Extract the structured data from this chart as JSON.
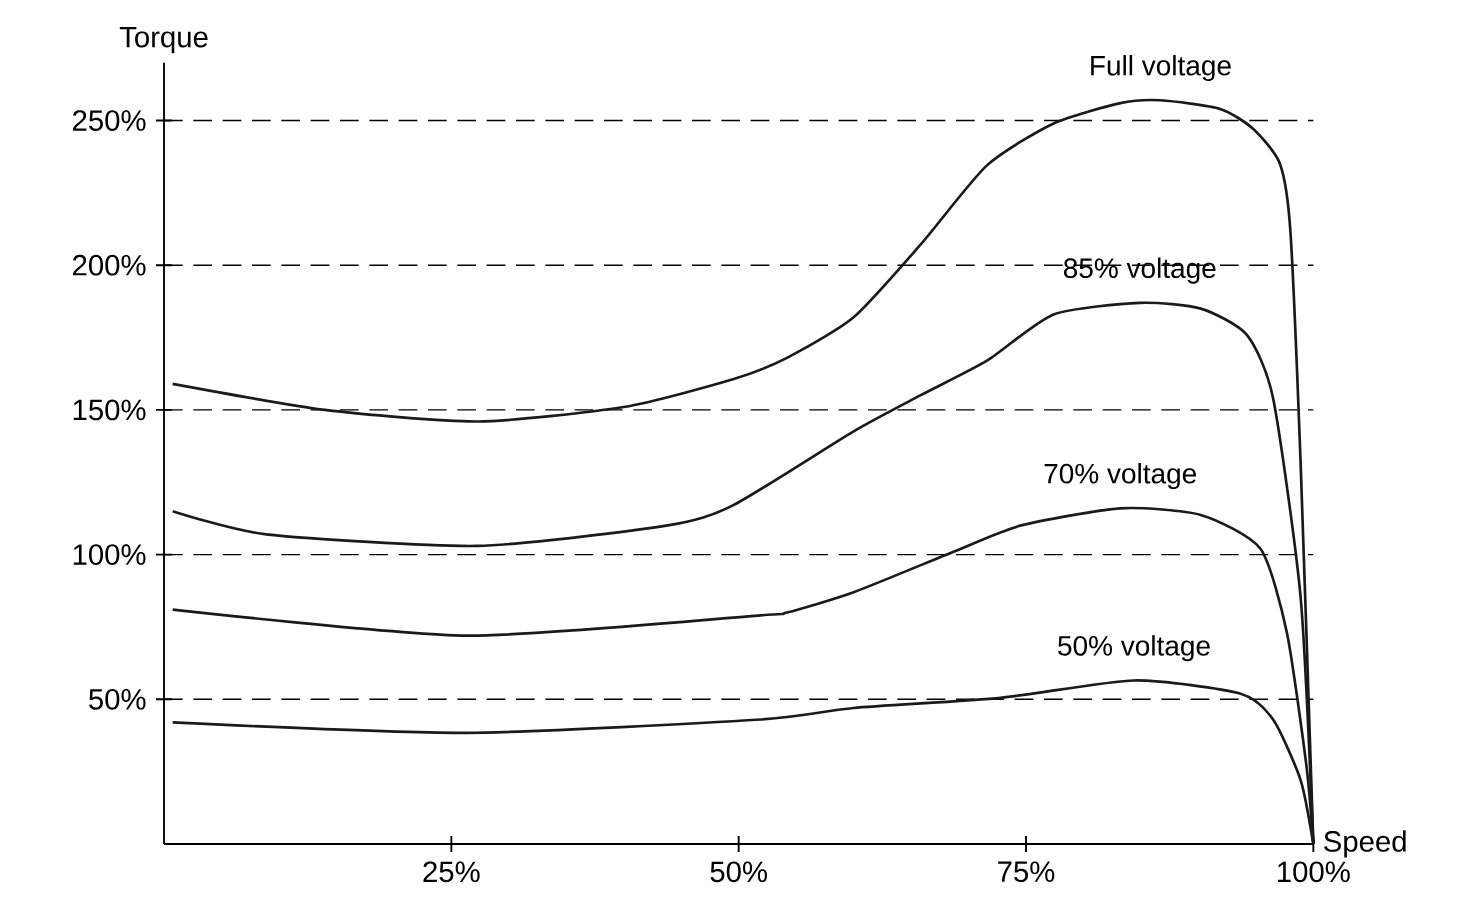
{
  "chart_data": {
    "type": "line",
    "xlabel": "Speed",
    "ylabel": "Torque",
    "xlim": [
      0,
      100
    ],
    "ylim": [
      0,
      270
    ],
    "xticks": [
      {
        "value": 25,
        "label": "25%"
      },
      {
        "value": 50,
        "label": "50%"
      },
      {
        "value": 75,
        "label": "75%"
      },
      {
        "value": 100,
        "label": "100%"
      }
    ],
    "yticks": [
      {
        "value": 50,
        "label": "50%"
      },
      {
        "value": 100,
        "label": "100%"
      },
      {
        "value": 150,
        "label": "150%"
      },
      {
        "value": 200,
        "label": "200%"
      },
      {
        "value": 250,
        "label": "250%"
      }
    ],
    "grid": "y",
    "legend": false,
    "marker": "none",
    "line_style": "solid",
    "series": [
      {
        "name": "Full voltage",
        "color": "#1a1a1a",
        "x": [
          0.75,
          14,
          27.3,
          40,
          49.5,
          54.2,
          60,
          65.8,
          71.6,
          77.4,
          83.2,
          86.7,
          91.9,
          94.8,
          97.1,
          98,
          98.9,
          100
        ],
        "values": [
          159,
          150,
          146,
          151,
          160.6,
          168,
          182,
          207,
          234.5,
          249,
          256,
          257,
          254,
          247,
          235,
          212,
          131,
          0
        ]
      },
      {
        "name": "85% voltage",
        "color": "#1a1a1a",
        "x": [
          0.75,
          8.9,
          27.3,
          43.7,
          49.5,
          60,
          65.8,
          71.6,
          77.4,
          84.9,
          90.2,
          94.2,
          96.5,
          98.9,
          100
        ],
        "values": [
          115,
          107,
          103,
          110,
          117,
          142.6,
          155,
          167,
          183,
          187,
          185,
          176,
          154,
          85,
          0
        ]
      },
      {
        "name": "70% voltage",
        "color": "#1a1a1a",
        "x": [
          0.75,
          26.3,
          51.9,
          54.2,
          60,
          68.7,
          74.5,
          83.2,
          90.2,
          95.4,
          97.7,
          99.4,
          100
        ],
        "values": [
          81,
          72,
          79,
          80,
          87,
          101,
          110,
          116,
          113.7,
          102,
          73,
          27,
          0
        ]
      },
      {
        "name": "50% voltage",
        "color": "#1a1a1a",
        "x": [
          0.75,
          26.3,
          51.9,
          60,
          72.8,
          84.4,
          93.6,
          96.5,
          98.9,
          100
        ],
        "values": [
          42,
          38.4,
          43,
          47,
          50.5,
          56.5,
          52,
          43,
          22,
          0
        ]
      }
    ]
  }
}
